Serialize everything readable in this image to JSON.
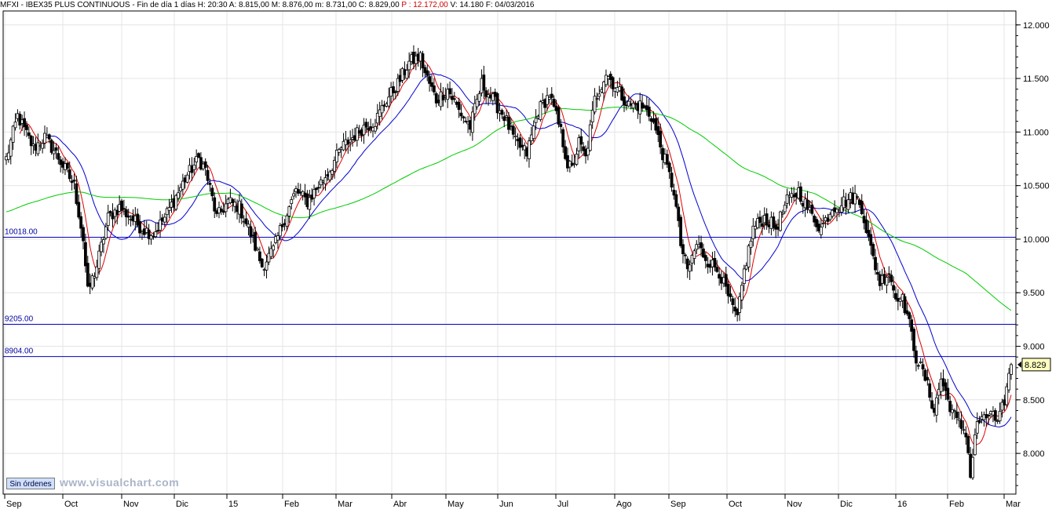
{
  "header": {
    "symbol": "MFXI - IBEX35 PLUS CONTINUOUS - Fin de día 1 días",
    "h": "H: 20:30",
    "a": "A: 8.815,00",
    "m": "M: 8.876,00",
    "mn": "m: 8.731,00",
    "c": "C: 8.829,00",
    "p": "P : 12.172,00",
    "v": "V: 14.180",
    "f": "F: 04/03/2016"
  },
  "colors": {
    "price": "#000000",
    "ma_fast": "#e00000",
    "ma_mid": "#0000d0",
    "ma_slow": "#00cc00",
    "hline": "#0000c0",
    "last_box": "#ffffc0"
  },
  "orders_button": "Sin órdenes",
  "watermark": "www.visualchart.com",
  "chart_data": {
    "type": "candlestick",
    "y_ticks": [
      "12.000",
      "11.500",
      "11.000",
      "10.500",
      "10.000",
      "9.500",
      "9.000",
      "8.500",
      "8.000"
    ],
    "y_tick_values": [
      12000,
      11500,
      11000,
      10500,
      10000,
      9500,
      9000,
      8500,
      8000
    ],
    "ylim": [
      7620,
      12130
    ],
    "x_ticks": [
      "Sep",
      "Oct",
      "Nov",
      "Dic",
      "15",
      "Feb",
      "Mar",
      "Abr",
      "May",
      "Jun",
      "Jul",
      "Ago",
      "Sep",
      "Oct",
      "Nov",
      "Dic",
      "16",
      "Feb",
      "Mar"
    ],
    "horizontal_lines": [
      {
        "label": "10018.00",
        "value": 10018
      },
      {
        "label": "9205.00",
        "value": 9205
      },
      {
        "label": "8904.00",
        "value": 8904
      }
    ],
    "last_price_label": "8.829",
    "last_price": 8829,
    "close_anchors": [
      [
        0,
        10750
      ],
      [
        5,
        11150
      ],
      [
        12,
        10850
      ],
      [
        17,
        10950
      ],
      [
        22,
        10800
      ],
      [
        30,
        10500
      ],
      [
        34,
        10000
      ],
      [
        36,
        9500
      ],
      [
        40,
        9750
      ],
      [
        45,
        10200
      ],
      [
        50,
        10300
      ],
      [
        55,
        10200
      ],
      [
        60,
        10100
      ],
      [
        65,
        10050
      ],
      [
        70,
        10200
      ],
      [
        75,
        10400
      ],
      [
        80,
        10600
      ],
      [
        85,
        10750
      ],
      [
        88,
        10650
      ],
      [
        93,
        10200
      ],
      [
        98,
        10350
      ],
      [
        103,
        10300
      ],
      [
        108,
        10050
      ],
      [
        113,
        9750
      ],
      [
        118,
        9900
      ],
      [
        123,
        10200
      ],
      [
        128,
        10450
      ],
      [
        133,
        10350
      ],
      [
        138,
        10500
      ],
      [
        143,
        10650
      ],
      [
        148,
        10850
      ],
      [
        153,
        10950
      ],
      [
        158,
        11050
      ],
      [
        163,
        11100
      ],
      [
        168,
        11300
      ],
      [
        173,
        11450
      ],
      [
        178,
        11650
      ],
      [
        183,
        11700
      ],
      [
        185,
        11550
      ],
      [
        190,
        11300
      ],
      [
        195,
        11400
      ],
      [
        200,
        11200
      ],
      [
        205,
        11050
      ],
      [
        210,
        11450
      ],
      [
        215,
        11300
      ],
      [
        220,
        11150
      ],
      [
        225,
        10900
      ],
      [
        230,
        10800
      ],
      [
        235,
        11200
      ],
      [
        240,
        11350
      ],
      [
        245,
        11000
      ],
      [
        248,
        10700
      ],
      [
        250,
        10650
      ],
      [
        253,
        10900
      ],
      [
        256,
        10750
      ],
      [
        260,
        11300
      ],
      [
        265,
        11550
      ],
      [
        270,
        11400
      ],
      [
        275,
        11250
      ],
      [
        280,
        11250
      ],
      [
        285,
        11150
      ],
      [
        290,
        10800
      ],
      [
        295,
        10450
      ],
      [
        298,
        9950
      ],
      [
        301,
        9700
      ],
      [
        305,
        9950
      ],
      [
        310,
        9800
      ],
      [
        315,
        9700
      ],
      [
        320,
        9400
      ],
      [
        323,
        9250
      ],
      [
        326,
        9700
      ],
      [
        330,
        10100
      ],
      [
        335,
        10200
      ],
      [
        340,
        10100
      ],
      [
        345,
        10350
      ],
      [
        350,
        10450
      ],
      [
        355,
        10250
      ],
      [
        360,
        10100
      ],
      [
        365,
        10300
      ],
      [
        370,
        10350
      ],
      [
        375,
        10400
      ],
      [
        378,
        10300
      ],
      [
        382,
        9900
      ],
      [
        386,
        9600
      ],
      [
        390,
        9700
      ],
      [
        393,
        9450
      ],
      [
        395,
        9500
      ],
      [
        398,
        9300
      ],
      [
        402,
        8900
      ],
      [
        406,
        8700
      ],
      [
        410,
        8400
      ],
      [
        413,
        8700
      ],
      [
        416,
        8500
      ],
      [
        420,
        8300
      ],
      [
        424,
        8200
      ],
      [
        426,
        7800
      ],
      [
        429,
        8300
      ],
      [
        432,
        8300
      ],
      [
        435,
        8400
      ],
      [
        438,
        8250
      ],
      [
        441,
        8500
      ],
      [
        444,
        8829
      ]
    ],
    "moving_averages": [
      {
        "period": 7,
        "color": "#e00000"
      },
      {
        "period": 20,
        "color": "#0000d0"
      },
      {
        "period": 100,
        "color": "#00cc00"
      }
    ]
  }
}
